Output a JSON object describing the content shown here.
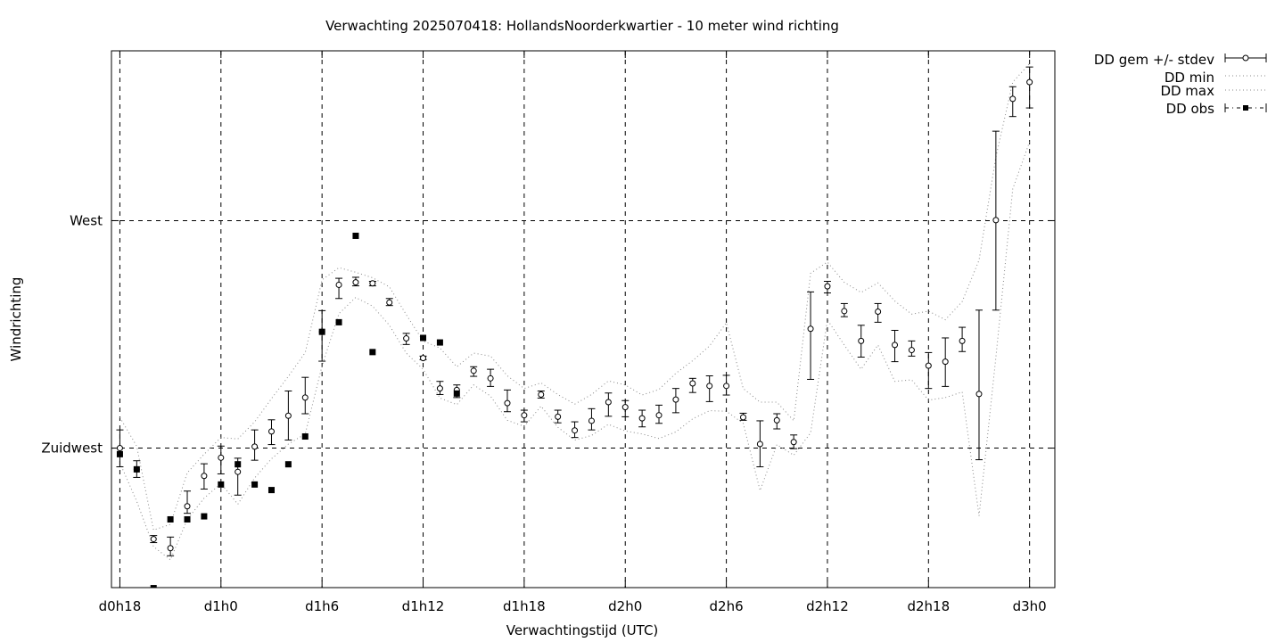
{
  "chart_data": {
    "type": "line",
    "title": "Verwachting 2025070418: HollandsNoorderkwartier - 10 meter wind richting",
    "xlabel": "Verwachtingstijd (UTC)",
    "ylabel": "Windrichting",
    "x_unit": "hours since d0h0",
    "x_ticks": [
      {
        "x": 18,
        "label": "d0h18"
      },
      {
        "x": 24,
        "label": "d1h0"
      },
      {
        "x": 30,
        "label": "d1h6"
      },
      {
        "x": 36,
        "label": "d1h12"
      },
      {
        "x": 42,
        "label": "d1h18"
      },
      {
        "x": 48,
        "label": "d2h0"
      },
      {
        "x": 54,
        "label": "d2h6"
      },
      {
        "x": 60,
        "label": "d2h12"
      },
      {
        "x": 66,
        "label": "d2h18"
      },
      {
        "x": 72,
        "label": "d3h0"
      }
    ],
    "y_ticks": [
      {
        "y": 225,
        "label": "Zuidwest"
      },
      {
        "y": 270,
        "label": "West"
      }
    ],
    "xlim": [
      17.5,
      73.5
    ],
    "ylim": [
      197.4,
      303.6
    ],
    "grid": true,
    "legend_position": "outside-right",
    "series": [
      {
        "name": "DD gem +/- stdev",
        "style": "errorbars-open-circle",
        "points": [
          [
            18,
            225.0,
            221.3,
            228.6
          ],
          [
            19,
            220.8,
            219.2,
            222.5
          ],
          [
            20,
            207.0,
            206.3,
            207.7
          ],
          [
            21,
            205.2,
            203.7,
            207.4
          ],
          [
            22,
            213.5,
            212.1,
            216.5
          ],
          [
            23,
            219.5,
            216.9,
            221.9
          ],
          [
            24,
            223.1,
            219.9,
            225.4
          ],
          [
            25,
            220.3,
            215.7,
            223.0
          ],
          [
            26,
            225.3,
            222.6,
            228.6
          ],
          [
            27,
            228.3,
            225.7,
            230.6
          ],
          [
            28,
            231.4,
            226.6,
            236.3
          ],
          [
            29,
            235.0,
            231.8,
            239.0
          ],
          [
            30,
            248.0,
            242.2,
            252.2
          ],
          [
            31,
            257.3,
            254.6,
            258.6
          ],
          [
            32,
            257.8,
            257.1,
            258.8
          ],
          [
            33,
            257.6,
            257.1,
            258.0
          ],
          [
            34,
            253.8,
            253.2,
            254.6
          ],
          [
            35,
            246.7,
            245.5,
            247.7
          ],
          [
            36,
            242.8,
            242.5,
            243.2
          ],
          [
            37,
            236.8,
            235.6,
            238.2
          ],
          [
            38,
            236.5,
            235.0,
            237.5
          ],
          [
            39,
            240.3,
            239.2,
            241.1
          ],
          [
            40,
            238.8,
            237.2,
            240.6
          ],
          [
            41,
            233.9,
            232.2,
            236.5
          ],
          [
            42,
            231.5,
            230.2,
            232.5
          ],
          [
            43,
            235.6,
            234.9,
            236.3
          ],
          [
            44,
            231.2,
            230.0,
            232.5
          ],
          [
            45,
            228.5,
            227.1,
            230.2
          ],
          [
            46,
            230.4,
            228.6,
            232.8
          ],
          [
            47,
            234.1,
            231.3,
            235.9
          ],
          [
            48,
            233.1,
            231.2,
            234.4
          ],
          [
            49,
            230.9,
            229.2,
            232.5
          ],
          [
            50,
            231.5,
            229.9,
            233.5
          ],
          [
            51,
            234.6,
            232.0,
            236.8
          ],
          [
            52,
            237.8,
            236.0,
            238.8
          ],
          [
            53,
            237.3,
            234.2,
            239.3
          ],
          [
            54,
            237.3,
            235.5,
            239.4
          ],
          [
            55,
            231.1,
            230.5,
            231.9
          ],
          [
            56,
            225.8,
            221.3,
            230.4
          ],
          [
            57,
            230.5,
            228.8,
            231.8
          ],
          [
            58,
            226.2,
            224.9,
            227.6
          ],
          [
            59,
            248.6,
            238.6,
            255.9
          ],
          [
            60,
            257.0,
            255.7,
            258.0
          ],
          [
            61,
            252.1,
            251.0,
            253.6
          ],
          [
            62,
            246.2,
            243.0,
            249.3
          ],
          [
            63,
            252.0,
            249.9,
            253.6
          ],
          [
            64,
            245.4,
            242.1,
            248.3
          ],
          [
            65,
            244.4,
            243.2,
            246.2
          ],
          [
            66,
            241.3,
            236.8,
            243.9
          ],
          [
            67,
            242.1,
            237.2,
            246.8
          ],
          [
            68,
            246.2,
            244.1,
            248.9
          ],
          [
            69,
            235.7,
            222.7,
            252.3
          ],
          [
            70,
            270.1,
            252.3,
            287.7
          ],
          [
            71,
            294.1,
            290.6,
            296.5
          ],
          [
            72,
            297.4,
            292.3,
            300.4
          ]
        ]
      },
      {
        "name": "DD min",
        "style": "dotted",
        "points": [
          [
            18,
            222.1
          ],
          [
            19,
            214.5
          ],
          [
            20,
            205.5
          ],
          [
            21,
            202.9
          ],
          [
            22,
            210.9
          ],
          [
            23,
            215.1
          ],
          [
            24,
            218.0
          ],
          [
            25,
            213.9
          ],
          [
            26,
            219.1
          ],
          [
            27,
            222.9
          ],
          [
            28,
            225.8
          ],
          [
            29,
            227.8
          ],
          [
            30,
            241.3
          ],
          [
            31,
            251.6
          ],
          [
            32,
            254.8
          ],
          [
            33,
            253.1
          ],
          [
            34,
            249.3
          ],
          [
            35,
            243.8
          ],
          [
            36,
            240.6
          ],
          [
            37,
            234.9
          ],
          [
            38,
            233.6
          ],
          [
            39,
            237.5
          ],
          [
            40,
            235.3
          ],
          [
            41,
            230.5
          ],
          [
            42,
            229.3
          ],
          [
            43,
            233.3
          ],
          [
            44,
            229.1
          ],
          [
            45,
            226.6
          ],
          [
            46,
            227.5
          ],
          [
            47,
            229.7
          ],
          [
            48,
            228.4
          ],
          [
            49,
            227.8
          ],
          [
            50,
            226.9
          ],
          [
            51,
            228.2
          ],
          [
            52,
            230.8
          ],
          [
            53,
            232.4
          ],
          [
            54,
            232.3
          ],
          [
            55,
            229.9
          ],
          [
            56,
            216.6
          ],
          [
            57,
            225.7
          ],
          [
            58,
            223.6
          ],
          [
            59,
            228.0
          ],
          [
            60,
            250.4
          ],
          [
            61,
            245.4
          ],
          [
            62,
            240.6
          ],
          [
            63,
            245.4
          ],
          [
            64,
            238.2
          ],
          [
            65,
            238.5
          ],
          [
            66,
            234.5
          ],
          [
            67,
            235.0
          ],
          [
            68,
            236.1
          ],
          [
            69,
            211.6
          ],
          [
            70,
            243.0
          ],
          [
            71,
            276.3
          ],
          [
            72,
            285.6
          ]
        ]
      },
      {
        "name": "DD max",
        "style": "dotted",
        "points": [
          [
            18,
            231.1
          ],
          [
            19,
            225.4
          ],
          [
            20,
            208.8
          ],
          [
            21,
            209.9
          ],
          [
            22,
            220.1
          ],
          [
            23,
            223.8
          ],
          [
            24,
            227.1
          ],
          [
            25,
            226.8
          ],
          [
            26,
            230.2
          ],
          [
            27,
            234.8
          ],
          [
            28,
            239.2
          ],
          [
            29,
            243.9
          ],
          [
            30,
            258.3
          ],
          [
            31,
            260.7
          ],
          [
            32,
            259.8
          ],
          [
            33,
            258.7
          ],
          [
            34,
            256.9
          ],
          [
            35,
            251.4
          ],
          [
            36,
            246.2
          ],
          [
            37,
            244.8
          ],
          [
            38,
            241.1
          ],
          [
            39,
            243.8
          ],
          [
            40,
            243.2
          ],
          [
            41,
            239.3
          ],
          [
            42,
            236.8
          ],
          [
            43,
            237.9
          ],
          [
            44,
            235.6
          ],
          [
            45,
            233.7
          ],
          [
            46,
            235.6
          ],
          [
            47,
            238.3
          ],
          [
            48,
            237.5
          ],
          [
            49,
            235.5
          ],
          [
            50,
            236.6
          ],
          [
            51,
            239.8
          ],
          [
            52,
            242.3
          ],
          [
            53,
            245.2
          ],
          [
            54,
            249.8
          ],
          [
            55,
            236.8
          ],
          [
            56,
            234.1
          ],
          [
            57,
            234.1
          ],
          [
            58,
            230.4
          ],
          [
            59,
            259.6
          ],
          [
            60,
            261.8
          ],
          [
            61,
            257.8
          ],
          [
            62,
            255.8
          ],
          [
            63,
            257.7
          ],
          [
            64,
            254.1
          ],
          [
            65,
            251.5
          ],
          [
            66,
            252.1
          ],
          [
            67,
            250.4
          ],
          [
            68,
            254.0
          ],
          [
            69,
            262.2
          ],
          [
            70,
            282.6
          ],
          [
            71,
            297.4
          ],
          [
            72,
            301.1
          ]
        ]
      },
      {
        "name": "DD obs",
        "style": "filled-square",
        "points": [
          [
            18,
            223.8
          ],
          [
            19,
            220.8
          ],
          [
            20,
            197.3
          ],
          [
            21,
            210.9
          ],
          [
            22,
            210.9
          ],
          [
            23,
            211.5
          ],
          [
            24,
            217.8
          ],
          [
            25,
            221.8
          ],
          [
            26,
            217.8
          ],
          [
            27,
            216.7
          ],
          [
            28,
            221.8
          ],
          [
            29,
            227.3
          ],
          [
            30,
            248.0
          ],
          [
            31,
            249.9
          ],
          [
            32,
            267.0
          ],
          [
            33,
            244.0
          ],
          [
            36,
            246.8
          ],
          [
            37,
            245.9
          ],
          [
            38,
            235.8
          ]
        ]
      }
    ],
    "colors": {
      "line": "#000000",
      "grid": "#000000",
      "background": "#ffffff"
    }
  }
}
